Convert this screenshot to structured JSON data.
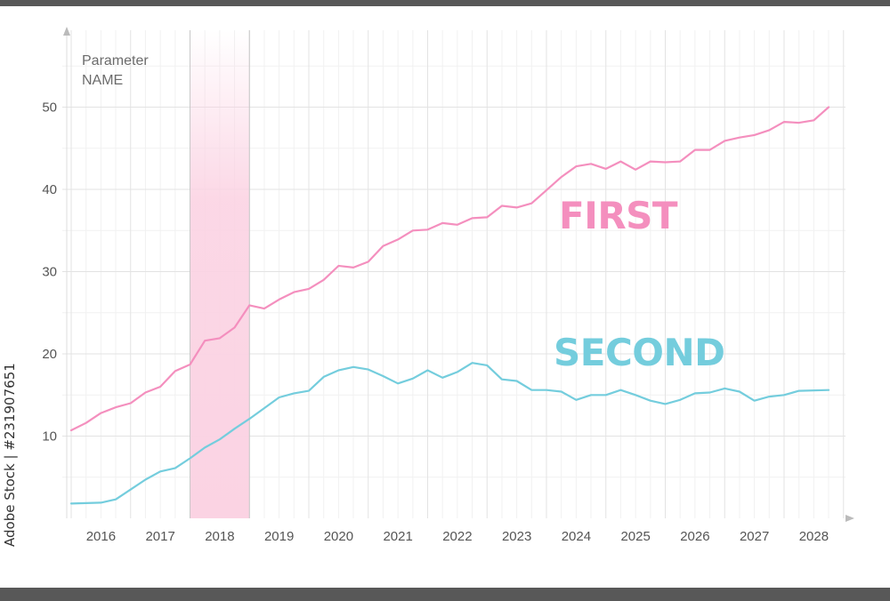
{
  "chart_data": {
    "type": "line",
    "title": "",
    "ylabel_lines": [
      "Parameter",
      "NAME"
    ],
    "xlabel": "",
    "x_categories": [
      "2016",
      "2017",
      "2018",
      "2019",
      "2020",
      "2021",
      "2022",
      "2023",
      "2024",
      "2025",
      "2026",
      "2027",
      "2028"
    ],
    "highlighted_category": "2018",
    "y_ticks": [
      10,
      20,
      30,
      40,
      50
    ],
    "ylim": [
      0,
      55
    ],
    "xlim": [
      2016,
      2029
    ],
    "grid": true,
    "series": [
      {
        "name": "FIRST",
        "color": "#f48fbe",
        "points": [
          [
            2016.0,
            10.7
          ],
          [
            2016.25,
            11.6
          ],
          [
            2016.5,
            12.8
          ],
          [
            2016.75,
            13.5
          ],
          [
            2017.0,
            14.0
          ],
          [
            2017.25,
            15.3
          ],
          [
            2017.5,
            16.0
          ],
          [
            2017.75,
            17.9
          ],
          [
            2018.0,
            18.7
          ],
          [
            2018.25,
            21.6
          ],
          [
            2018.5,
            21.9
          ],
          [
            2018.75,
            23.2
          ],
          [
            2019.0,
            25.9
          ],
          [
            2019.25,
            25.5
          ],
          [
            2019.5,
            26.6
          ],
          [
            2019.75,
            27.5
          ],
          [
            2020.0,
            27.9
          ],
          [
            2020.25,
            29.0
          ],
          [
            2020.5,
            30.7
          ],
          [
            2020.75,
            30.5
          ],
          [
            2021.0,
            31.2
          ],
          [
            2021.25,
            33.1
          ],
          [
            2021.5,
            33.9
          ],
          [
            2021.75,
            35.0
          ],
          [
            2022.0,
            35.1
          ],
          [
            2022.25,
            35.9
          ],
          [
            2022.5,
            35.7
          ],
          [
            2022.75,
            36.5
          ],
          [
            2023.0,
            36.6
          ],
          [
            2023.25,
            38.0
          ],
          [
            2023.5,
            37.8
          ],
          [
            2023.75,
            38.3
          ],
          [
            2024.0,
            39.9
          ],
          [
            2024.25,
            41.5
          ],
          [
            2024.5,
            42.8
          ],
          [
            2024.75,
            43.1
          ],
          [
            2025.0,
            42.5
          ],
          [
            2025.25,
            43.4
          ],
          [
            2025.5,
            42.4
          ],
          [
            2025.75,
            43.4
          ],
          [
            2026.0,
            43.3
          ],
          [
            2026.25,
            43.4
          ],
          [
            2026.5,
            44.8
          ],
          [
            2026.75,
            44.8
          ],
          [
            2027.0,
            45.9
          ],
          [
            2027.25,
            46.3
          ],
          [
            2027.5,
            46.6
          ],
          [
            2027.75,
            47.2
          ],
          [
            2028.0,
            48.2
          ],
          [
            2028.25,
            48.1
          ],
          [
            2028.5,
            48.4
          ],
          [
            2028.75,
            50.0
          ]
        ]
      },
      {
        "name": "SECOND",
        "color": "#74cddd",
        "points": [
          [
            2016.0,
            1.8
          ],
          [
            2016.5,
            1.9
          ],
          [
            2016.75,
            2.3
          ],
          [
            2017.0,
            3.5
          ],
          [
            2017.25,
            4.7
          ],
          [
            2017.5,
            5.7
          ],
          [
            2017.75,
            6.1
          ],
          [
            2018.0,
            7.3
          ],
          [
            2018.25,
            8.6
          ],
          [
            2018.5,
            9.6
          ],
          [
            2018.75,
            10.9
          ],
          [
            2019.0,
            12.1
          ],
          [
            2019.25,
            13.4
          ],
          [
            2019.5,
            14.7
          ],
          [
            2019.75,
            15.2
          ],
          [
            2020.0,
            15.5
          ],
          [
            2020.25,
            17.2
          ],
          [
            2020.5,
            18.0
          ],
          [
            2020.75,
            18.4
          ],
          [
            2021.0,
            18.1
          ],
          [
            2021.25,
            17.3
          ],
          [
            2021.5,
            16.4
          ],
          [
            2021.75,
            17.0
          ],
          [
            2022.0,
            18.0
          ],
          [
            2022.25,
            17.1
          ],
          [
            2022.5,
            17.8
          ],
          [
            2022.75,
            18.9
          ],
          [
            2023.0,
            18.6
          ],
          [
            2023.25,
            16.9
          ],
          [
            2023.5,
            16.7
          ],
          [
            2023.75,
            15.6
          ],
          [
            2024.0,
            15.6
          ],
          [
            2024.25,
            15.4
          ],
          [
            2024.5,
            14.4
          ],
          [
            2024.75,
            15.0
          ],
          [
            2025.0,
            15.0
          ],
          [
            2025.25,
            15.6
          ],
          [
            2025.5,
            15.0
          ],
          [
            2025.75,
            14.3
          ],
          [
            2026.0,
            13.9
          ],
          [
            2026.25,
            14.4
          ],
          [
            2026.5,
            15.2
          ],
          [
            2026.75,
            15.3
          ],
          [
            2027.0,
            15.8
          ],
          [
            2027.25,
            15.4
          ],
          [
            2027.5,
            14.3
          ],
          [
            2027.75,
            14.8
          ],
          [
            2028.0,
            15.0
          ],
          [
            2028.25,
            15.5
          ],
          [
            2028.75,
            15.6
          ]
        ]
      }
    ],
    "colors": {
      "first": "#f48fbe",
      "second": "#74cddd",
      "highlight_band": "#fbd3e3",
      "highlight_tick": "#e6669f",
      "grid_major": "#e3e3e3",
      "grid_minor": "#f1f1f1",
      "axis_arrow": "#bbbbbb",
      "tick_text": "#555555",
      "frame_bars": "#585858"
    }
  },
  "watermark": {
    "side_text": "Adobe Stock | #231907651"
  }
}
